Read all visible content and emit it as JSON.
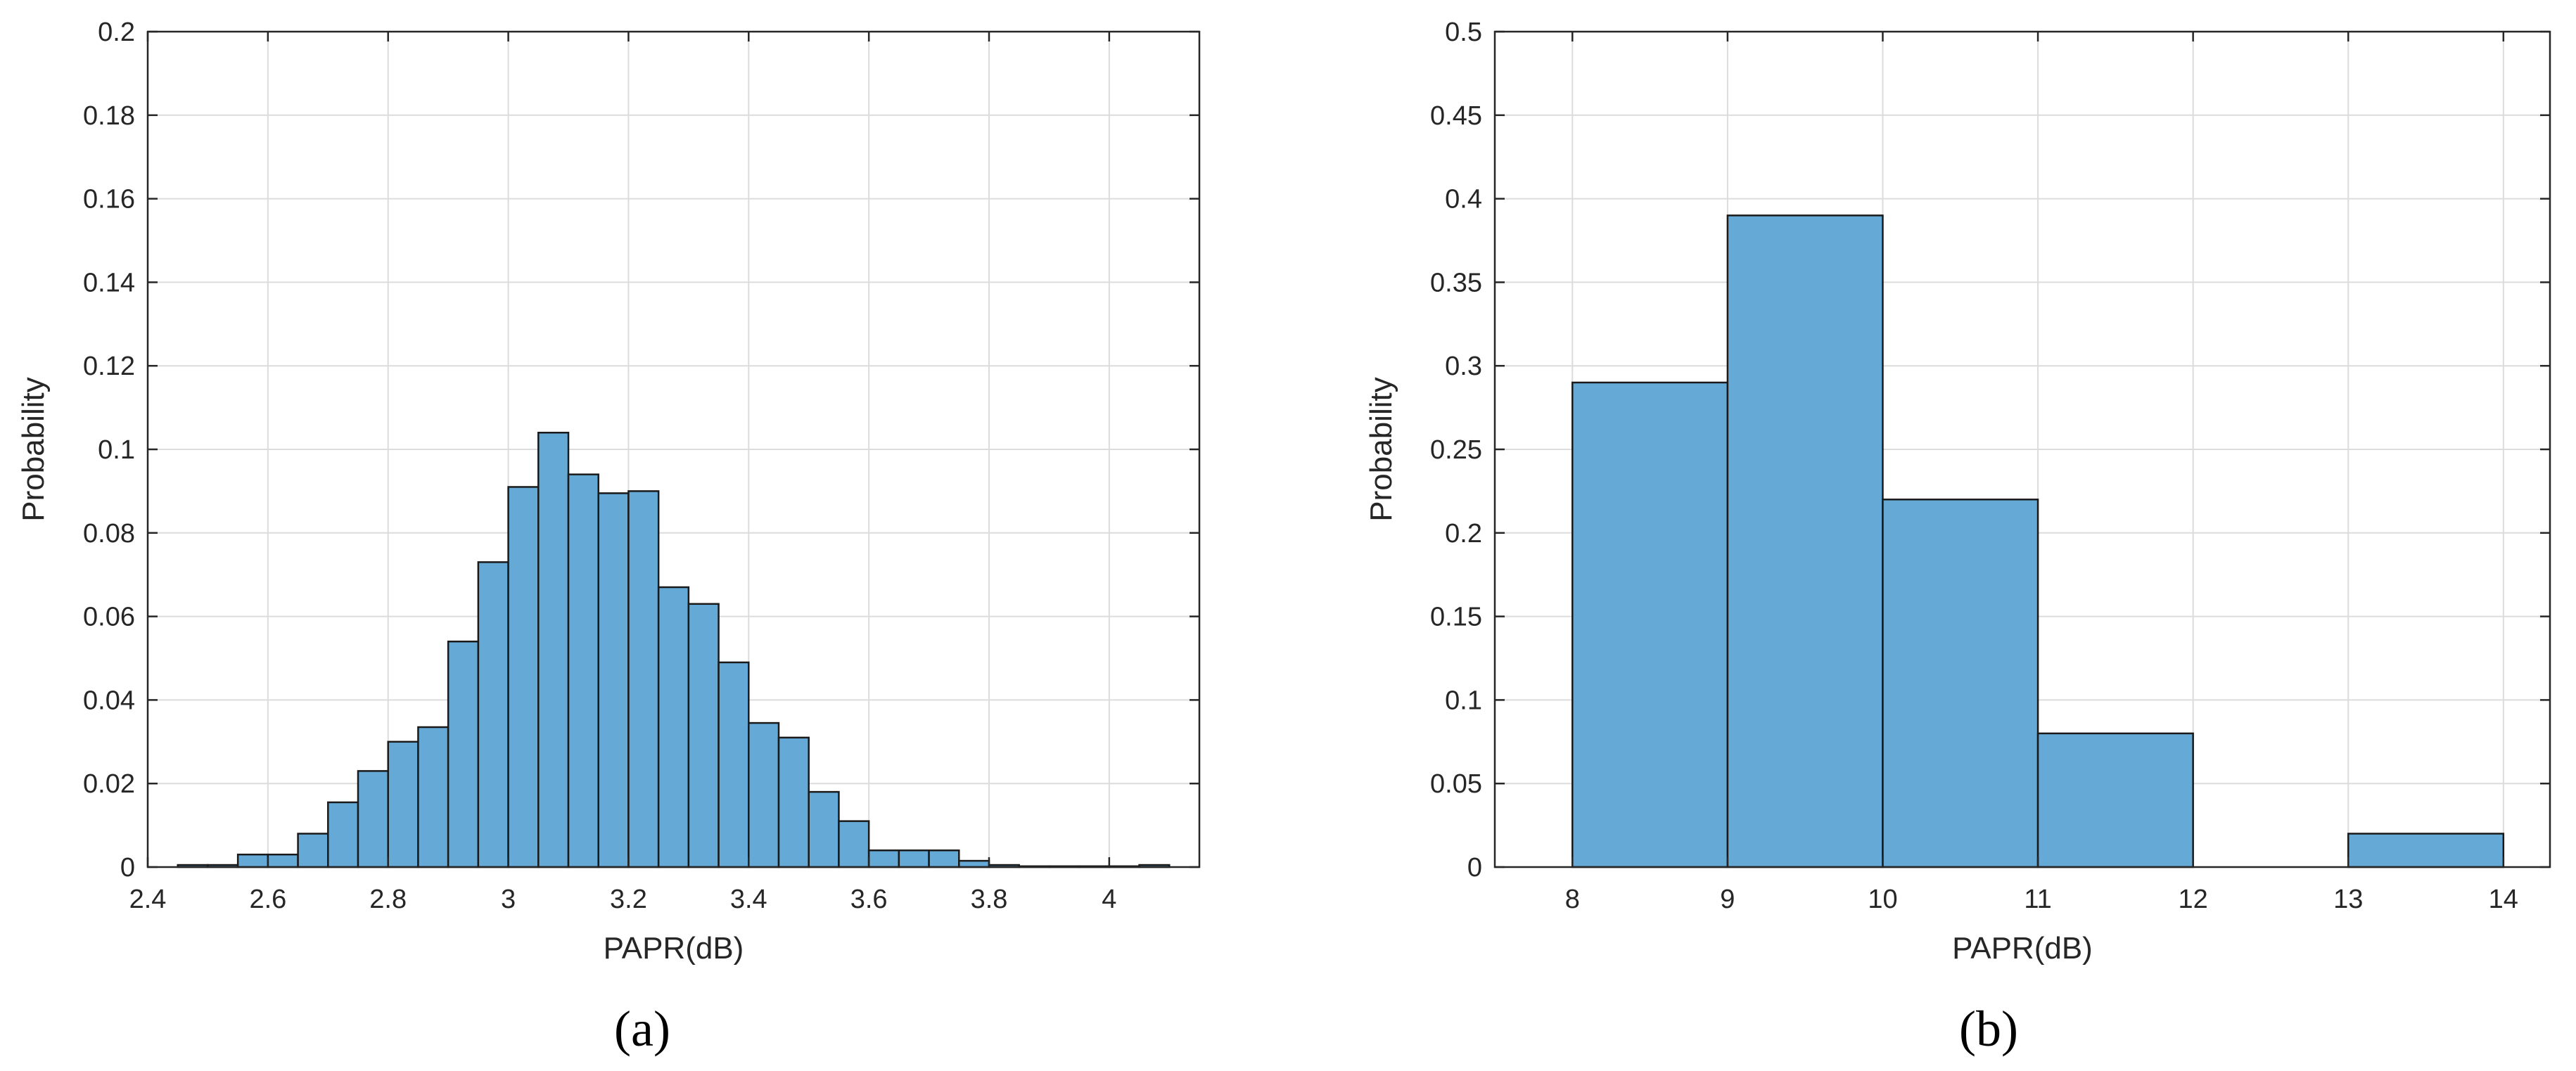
{
  "colors": {
    "bar_fill": "#65a9d7",
    "bar_edge": "#1a1a1a",
    "grid": "#dcdcdc",
    "axis": "#262626"
  },
  "chart_data": [
    {
      "type": "bar",
      "panel_label": "(a)",
      "xlabel": "PAPR(dB)",
      "ylabel": "Probability",
      "xlim": [
        2.4,
        4.15
      ],
      "ylim": [
        0,
        0.2
      ],
      "xticks": [
        2.4,
        2.6,
        2.8,
        3,
        3.2,
        3.4,
        3.6,
        3.8,
        4
      ],
      "xtick_labels": [
        "2.4",
        "2.6",
        "2.8",
        "3",
        "3.2",
        "3.4",
        "3.6",
        "3.8",
        "4"
      ],
      "yticks": [
        0,
        0.02,
        0.04,
        0.06,
        0.08,
        0.1,
        0.12,
        0.14,
        0.16,
        0.18,
        0.2
      ],
      "ytick_labels": [
        "0",
        "0.02",
        "0.04",
        "0.06",
        "0.08",
        "0.1",
        "0.12",
        "0.14",
        "0.16",
        "0.18",
        "0.2"
      ],
      "grid": true,
      "bin_edges": [
        2.45,
        2.5,
        2.55,
        2.6,
        2.65,
        2.7,
        2.75,
        2.8,
        2.85,
        2.9,
        2.95,
        3.0,
        3.05,
        3.1,
        3.15,
        3.2,
        3.25,
        3.3,
        3.35,
        3.4,
        3.45,
        3.5,
        3.55,
        3.6,
        3.65,
        3.7,
        3.75,
        3.8,
        3.85,
        3.9,
        3.95,
        4.0,
        4.05,
        4.1
      ],
      "values": [
        0.0005,
        0.0005,
        0.003,
        0.003,
        0.008,
        0.0155,
        0.023,
        0.03,
        0.0335,
        0.054,
        0.073,
        0.091,
        0.104,
        0.094,
        0.0895,
        0.09,
        0.067,
        0.063,
        0.049,
        0.0345,
        0.031,
        0.018,
        0.011,
        0.004,
        0.004,
        0.004,
        0.0015,
        0.0005,
        0.0002,
        0.0002,
        0.0002,
        0.0002,
        0.0005
      ]
    },
    {
      "type": "bar",
      "panel_label": "(b)",
      "xlabel": "PAPR(dB)",
      "ylabel": "Probability",
      "xlim": [
        7.5,
        14.3
      ],
      "ylim": [
        0,
        0.5
      ],
      "xticks": [
        8,
        9,
        10,
        11,
        12,
        13,
        14
      ],
      "xtick_labels": [
        "8",
        "9",
        "10",
        "11",
        "12",
        "13",
        "14"
      ],
      "yticks": [
        0,
        0.05,
        0.1,
        0.15,
        0.2,
        0.25,
        0.3,
        0.35,
        0.4,
        0.45,
        0.5
      ],
      "ytick_labels": [
        "0",
        "0.05",
        "0.1",
        "0.15",
        "0.2",
        "0.25",
        "0.3",
        "0.35",
        "0.4",
        "0.45",
        "0.5"
      ],
      "grid": true,
      "bin_edges": [
        8,
        9,
        10,
        11,
        12,
        13,
        14
      ],
      "values": [
        0.29,
        0.39,
        0.22,
        0.08,
        0.0,
        0.02
      ]
    }
  ]
}
